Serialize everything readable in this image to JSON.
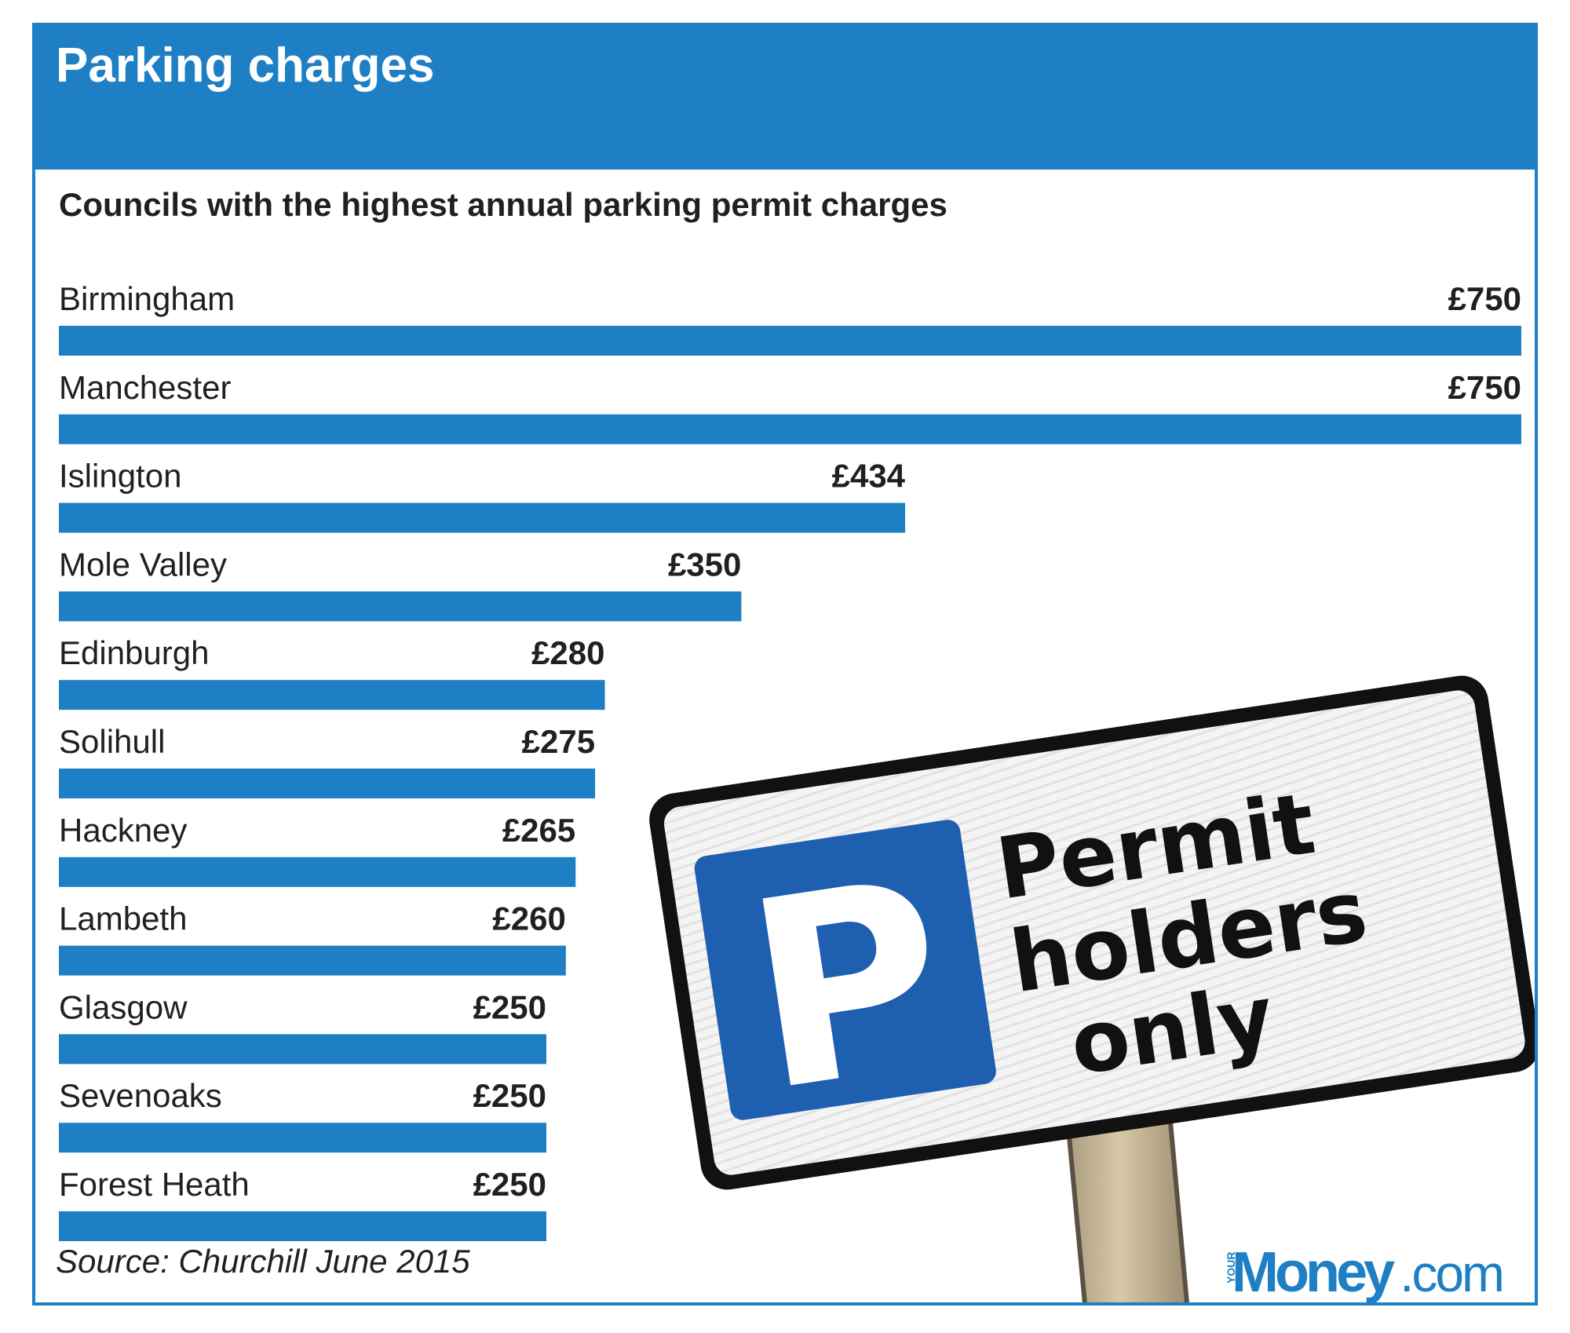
{
  "header": {
    "title": "Parking charges"
  },
  "chart_data": {
    "type": "bar",
    "orientation": "horizontal",
    "title": "Councils with the highest annual parking permit charges",
    "categories": [
      "Birmingham",
      "Manchester",
      "Islington",
      "Mole Valley",
      "Edinburgh",
      "Solihull",
      "Hackney",
      "Lambeth",
      "Glasgow",
      "Sevenoaks",
      "Forest Heath"
    ],
    "values": [
      750,
      750,
      434,
      350,
      280,
      275,
      265,
      260,
      250,
      250,
      250
    ],
    "value_labels": [
      "£750",
      "£750",
      "£434",
      "£350",
      "£280",
      "£275",
      "£265",
      "£260",
      "£250",
      "£250",
      "£250"
    ],
    "value_prefix": "£",
    "xlim": [
      0,
      750
    ],
    "bar_color": "#1e7fc4",
    "grid": false,
    "legend": "none"
  },
  "footer": {
    "source": "Source: Churchill June 2015"
  },
  "logo": {
    "prefix": "YOUR",
    "brand": "Money",
    "suffix": ".com"
  },
  "sign": {
    "letter": "P",
    "lines": [
      "Permit",
      "holders",
      "only"
    ]
  },
  "colors": {
    "accent": "#1e7fc4",
    "text": "#231f20",
    "sign_blue": "#1e5fb0"
  }
}
